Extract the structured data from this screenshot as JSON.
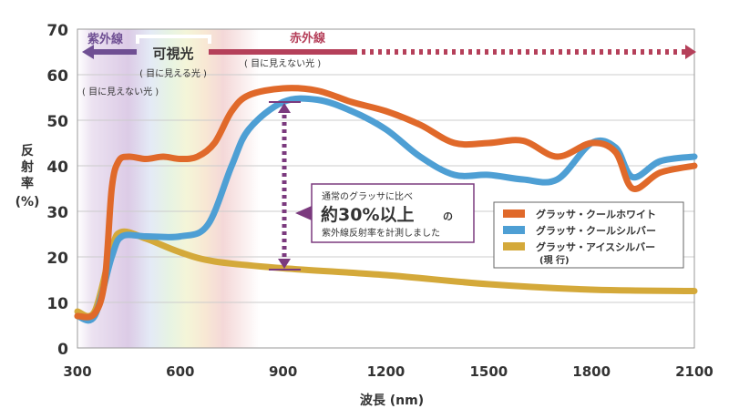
{
  "chart_data": {
    "type": "line",
    "xlabel": "波長 (nm)",
    "ylabel": [
      "反",
      "射",
      "率",
      "(%)"
    ],
    "xlim": [
      300,
      2100
    ],
    "ylim": [
      0,
      70
    ],
    "xticks": [
      300,
      600,
      900,
      1200,
      1500,
      1800,
      2100
    ],
    "yticks": [
      0,
      10,
      20,
      30,
      40,
      50,
      60,
      70
    ],
    "grid": "horizontal",
    "legend_position": "center-right",
    "series": [
      {
        "name": "グラッサ・クールホワイト",
        "color": "#e0692a",
        "x": [
          300,
          350,
          380,
          400,
          420,
          450,
          500,
          550,
          600,
          650,
          700,
          750,
          800,
          900,
          1000,
          1100,
          1200,
          1300,
          1400,
          1500,
          1600,
          1700,
          1800,
          1870,
          1920,
          2000,
          2100
        ],
        "y": [
          7,
          7.5,
          15,
          35,
          41,
          42,
          41.5,
          42,
          41.5,
          42,
          45,
          52,
          55.5,
          57,
          56.5,
          54,
          52,
          49,
          45,
          45,
          45.5,
          42,
          45,
          43,
          35,
          38.5,
          40
        ]
      },
      {
        "name": "グラッサ・クールシルバー",
        "color": "#4e9fd4",
        "x": [
          300,
          350,
          400,
          430,
          500,
          600,
          680,
          750,
          800,
          900,
          1000,
          1100,
          1200,
          1300,
          1400,
          1500,
          1600,
          1700,
          1800,
          1870,
          1920,
          2000,
          2100
        ],
        "y": [
          7,
          7,
          20,
          24.5,
          24.5,
          24.5,
          27,
          40,
          48,
          54,
          54.5,
          52,
          48,
          42,
          38,
          38,
          37,
          37,
          45,
          44,
          37.5,
          41,
          42
        ]
      },
      {
        "name": "グラッサ・アイスシルバー",
        "name_sub": "(現 行)",
        "color": "#d4a93a",
        "x": [
          300,
          350,
          400,
          430,
          500,
          600,
          700,
          900,
          1200,
          1500,
          1800,
          2100
        ],
        "y": [
          8,
          8,
          22,
          25.5,
          24,
          21,
          19,
          17.5,
          16,
          14,
          12.8,
          12.5
        ]
      }
    ],
    "annotations": {
      "uv": "紫外線",
      "uv_sub": "( 目に見えない光 )",
      "visible": "可視光",
      "visible_sub": "( 目に見える光 )",
      "ir": "赤外線",
      "ir_sub": "( 目に見えない光 )",
      "callout_line1": "通常のグラッサに比べ",
      "callout_big": "約30%以上",
      "callout_no": "の",
      "callout_line3": "紫外線反射率を計測しました"
    },
    "colors": {
      "uv": "#6f4f93",
      "ir": "#b5405a",
      "callout": "#7b3a7e"
    }
  }
}
